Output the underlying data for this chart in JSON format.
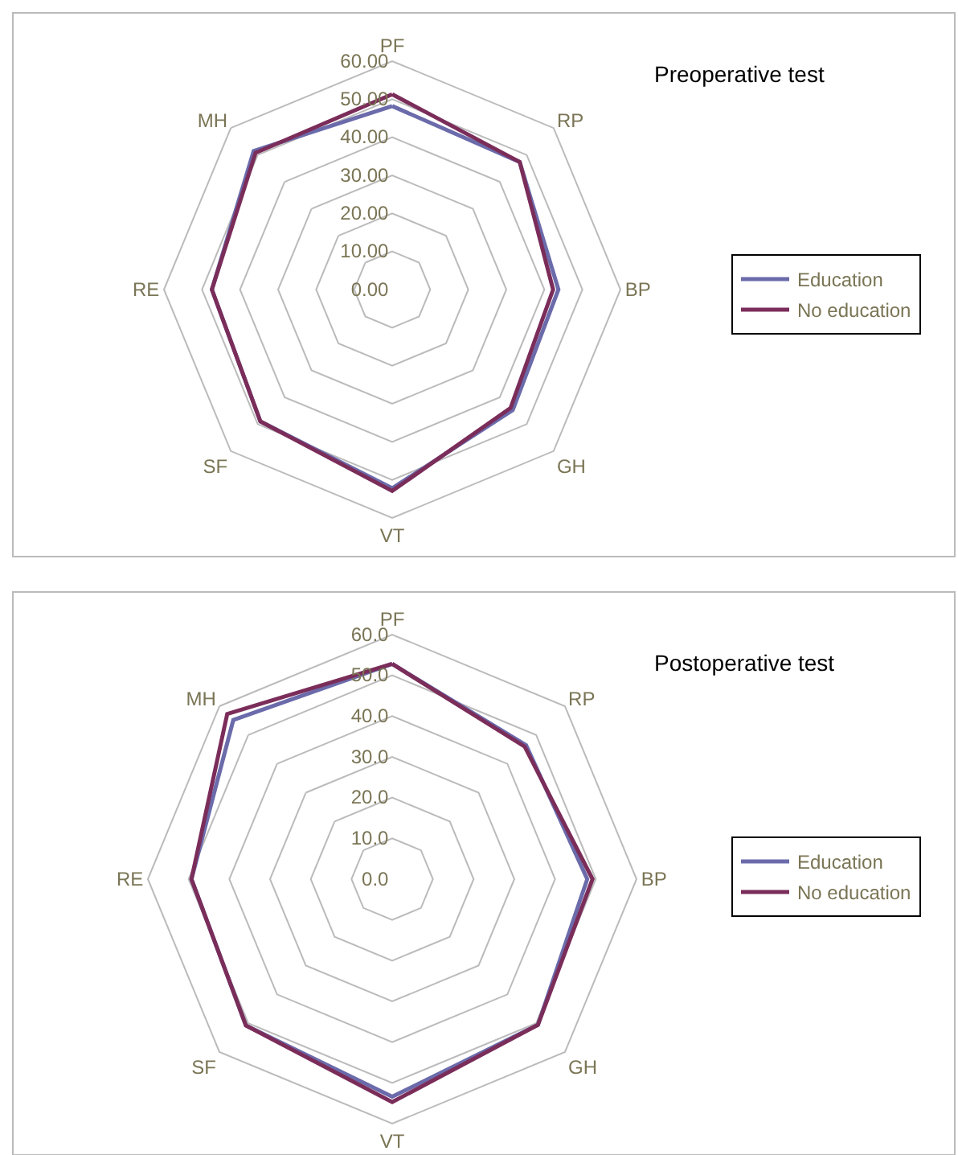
{
  "chart_data": [
    {
      "type": "radar",
      "title": "Preoperative test",
      "categories": [
        "PF",
        "RP",
        "BP",
        "GH",
        "VT",
        "SF",
        "RE",
        "MH"
      ],
      "ylim": [
        0,
        60
      ],
      "yticks": [
        {
          "value": 0,
          "label": "0.00"
        },
        {
          "value": 10,
          "label": "10.00"
        },
        {
          "value": 20,
          "label": "20.00"
        },
        {
          "value": 30,
          "label": "30.00"
        },
        {
          "value": 40,
          "label": "40.00"
        },
        {
          "value": 50,
          "label": "50.00"
        },
        {
          "value": 60,
          "label": "60.00"
        }
      ],
      "grid": true,
      "legend": "right",
      "marker": "none",
      "line_style": "solid",
      "series": [
        {
          "name": "Education",
          "color": "#6b6bab",
          "values": [
            48.2,
            47.4,
            43.7,
            44.8,
            52.2,
            49.0,
            47.4,
            51.5
          ]
        },
        {
          "name": "No education",
          "color": "#7b2d5a",
          "values": [
            51.3,
            47.4,
            42.3,
            44.0,
            52.9,
            49.0,
            47.4,
            50.8
          ]
        }
      ]
    },
    {
      "type": "radar",
      "title": "Postoperative test",
      "categories": [
        "PF",
        "RP",
        "BP",
        "GH",
        "VT",
        "SF",
        "RE",
        "MH"
      ],
      "ylim": [
        0,
        60
      ],
      "yticks": [
        {
          "value": 0,
          "label": "0.0"
        },
        {
          "value": 10,
          "label": "10.0"
        },
        {
          "value": 20,
          "label": "20.0"
        },
        {
          "value": 30,
          "label": "30.0"
        },
        {
          "value": 40,
          "label": "40.0"
        },
        {
          "value": 50,
          "label": "50.0"
        },
        {
          "value": 60,
          "label": "60.0"
        }
      ],
      "grid": true,
      "legend": "right",
      "marker": "none",
      "line_style": "solid",
      "series": [
        {
          "name": "Education",
          "color": "#6b6bab",
          "values": [
            52.8,
            46.5,
            47.9,
            50.6,
            53.4,
            50.8,
            49.3,
            55.2
          ]
        },
        {
          "name": "No education",
          "color": "#7b2d5a",
          "values": [
            52.8,
            46.0,
            49.2,
            50.6,
            54.7,
            50.8,
            49.3,
            57.3
          ]
        }
      ]
    }
  ]
}
